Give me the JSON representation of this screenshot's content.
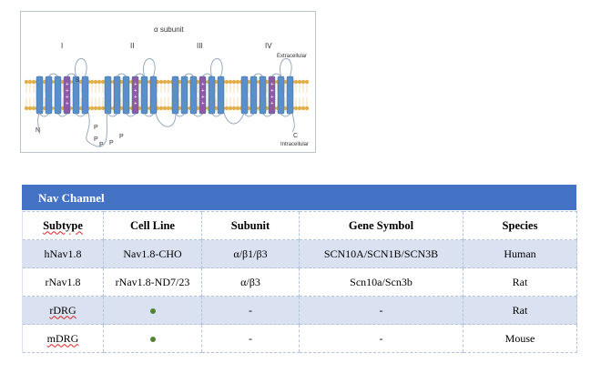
{
  "diagram": {
    "title": "α subunit",
    "domains": [
      "I",
      "II",
      "III",
      "IV"
    ],
    "extracellular_label": "Extracellular",
    "intracellular_label": "Intracellular",
    "n_terminus": "N",
    "c_terminus": "C",
    "s_label": "S",
    "phospho_labels": [
      "P",
      "P",
      "P",
      "P",
      "P"
    ],
    "colors": {
      "helix": "#5b8fc9",
      "voltage_sensor": "#8e5aa6",
      "lipid": "#e2b04a",
      "loop": "#8fa3b8"
    }
  },
  "table": {
    "title": "Nav Channel",
    "headers": [
      "Subtype",
      "Cell Line",
      "Subunit",
      "Gene Symbol",
      "Species"
    ],
    "rows": [
      {
        "subtype": "hNav1.8",
        "cell_line": "Nav1.8-CHO",
        "subunit": "α/β1/β3",
        "gene_symbol": "SCN10A/SCN1B/SCN3B",
        "species": "Human",
        "cell_line_marker": false
      },
      {
        "subtype": "rNav1.8",
        "cell_line": "rNav1.8-ND7/23",
        "subunit": "α/β3",
        "gene_symbol": "Scn10a/Scn3b",
        "species": "Rat",
        "cell_line_marker": false
      },
      {
        "subtype": "rDRG",
        "cell_line": "",
        "subunit": "-",
        "gene_symbol": "-",
        "species": "Rat",
        "cell_line_marker": true
      },
      {
        "subtype": "mDRG",
        "cell_line": "",
        "subunit": "-",
        "gene_symbol": "-",
        "species": "Mouse",
        "cell_line_marker": true
      }
    ],
    "colors": {
      "header_bar": "#4472c4",
      "row_shade": "#dae2f1",
      "marker": "#548235"
    }
  }
}
